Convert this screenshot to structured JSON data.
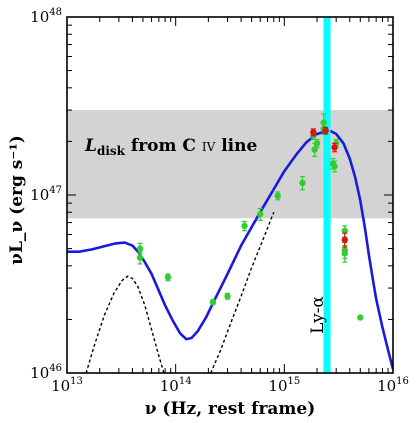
{
  "chart_data": {
    "type": "scatter",
    "xlabel": "ν (Hz, rest frame)",
    "ylabel": "νL_ν (erg s⁻¹)",
    "xscale": "log",
    "yscale": "log",
    "xlim": [
      10000000000000.0,
      1e+16
    ],
    "ylim": [
      1e+46,
      1e+48
    ],
    "grid": false,
    "x_tick_labels": [
      {
        "value": 10000000000000.0,
        "base": "10",
        "exp": "13"
      },
      {
        "value": 100000000000000.0,
        "base": "10",
        "exp": "14"
      },
      {
        "value": 1000000000000000.0,
        "base": "10",
        "exp": "15"
      },
      {
        "value": 1e+16,
        "base": "10",
        "exp": "16"
      }
    ],
    "y_tick_labels": [
      {
        "value": 1e+46,
        "base": "10",
        "exp": "46"
      },
      {
        "value": 1e+47,
        "base": "10",
        "exp": "47"
      },
      {
        "value": 1e+48,
        "base": "10",
        "exp": "48"
      }
    ],
    "shaded_band": {
      "y_from": 7.4e+46,
      "y_to": 3e+47,
      "color": "#d3d3d3"
    },
    "band_label": {
      "main": "L",
      "sub": "disk",
      "text": " from C ",
      "smallcaps": "IV",
      "tail": " line"
    },
    "vertical_line": {
      "x": 2470000000000000.0,
      "label": "Ly-α",
      "color": "#00ffff"
    },
    "series": [
      {
        "role": "model",
        "style": "solid",
        "color": "#1a1add",
        "points": [
          [
            10000000000000.0,
            4.8e+46
          ],
          [
            13000000000000.0,
            4.8e+46
          ],
          [
            17000000000000.0,
            4.95e+46
          ],
          [
            22000000000000.0,
            5.15e+46
          ],
          [
            28000000000000.0,
            5.35e+46
          ],
          [
            34000000000000.0,
            5.4e+46
          ],
          [
            40000000000000.0,
            5.2e+46
          ],
          [
            45000000000000.0,
            4.8e+46
          ],
          [
            52000000000000.0,
            4.2e+46
          ],
          [
            60000000000000.0,
            3.6e+46
          ],
          [
            70000000000000.0,
            2.9e+46
          ],
          [
            80000000000000.0,
            2.4e+46
          ],
          [
            95000000000000.0,
            1.95e+46
          ],
          [
            110000000000000.0,
            1.67e+46
          ],
          [
            125000000000000.0,
            1.55e+46
          ],
          [
            140000000000000.0,
            1.57e+46
          ],
          [
            160000000000000.0,
            1.72e+46
          ],
          [
            190000000000000.0,
            2.05e+46
          ],
          [
            230000000000000.0,
            2.6e+46
          ],
          [
            300000000000000.0,
            3.6e+46
          ],
          [
            400000000000000.0,
            5.2e+46
          ],
          [
            600000000000000.0,
            8e+46
          ],
          [
            800000000000000.0,
            1.08e+47
          ],
          [
            1000000000000000.0,
            1.36e+47
          ],
          [
            1300000000000000.0,
            1.7e+47
          ],
          [
            1600000000000000.0,
            1.98e+47
          ],
          [
            2000000000000000.0,
            2.2e+47
          ],
          [
            2400000000000000.0,
            2.28e+47
          ],
          [
            2700000000000000.0,
            2.28e+47
          ],
          [
            3000000000000000.0,
            2.2e+47
          ],
          [
            3500000000000000.0,
            1.95e+47
          ],
          [
            4000000000000000.0,
            1.6e+47
          ],
          [
            4500000000000000.0,
            1.25e+47
          ],
          [
            5000000000000000.0,
            9.3e+46
          ],
          [
            5500000000000000.0,
            6.6e+46
          ],
          [
            6000000000000000.0,
            4.6e+46
          ],
          [
            6500000000000000.0,
            3.4e+46
          ],
          [
            7000000000000000.0,
            2.6e+46
          ],
          [
            8000000000000000.0,
            1.8e+46
          ],
          [
            9000000000000000.0,
            1.35e+46
          ],
          [
            1e+16,
            1.05e+46
          ]
        ]
      },
      {
        "role": "torus-component",
        "style": "dotted",
        "color": "#000000",
        "points": [
          [
            15000000000000.0,
            1e+46
          ],
          [
            18000000000000.0,
            1.45e+46
          ],
          [
            22000000000000.0,
            2.1e+46
          ],
          [
            27000000000000.0,
            2.8e+46
          ],
          [
            32000000000000.0,
            3.3e+46
          ],
          [
            36000000000000.0,
            3.5e+46
          ],
          [
            40000000000000.0,
            3.4e+46
          ],
          [
            45000000000000.0,
            3.05e+46
          ],
          [
            52000000000000.0,
            2.4e+46
          ],
          [
            60000000000000.0,
            1.75e+46
          ],
          [
            70000000000000.0,
            1.25e+46
          ],
          [
            78000000000000.0,
            1e+46
          ]
        ]
      },
      {
        "role": "disk-component",
        "style": "dotted",
        "color": "#000000",
        "points": [
          [
            210000000000000.0,
            1e+46
          ],
          [
            260000000000000.0,
            1.35e+46
          ],
          [
            320000000000000.0,
            1.9e+46
          ],
          [
            400000000000000.0,
            2.7e+46
          ],
          [
            500000000000000.0,
            3.9e+46
          ],
          [
            650000000000000.0,
            5.8e+46
          ],
          [
            800000000000000.0,
            8e+46
          ]
        ]
      },
      {
        "role": "photometry",
        "marker": "circle",
        "color": "#33cc33",
        "points": [
          {
            "x": 47000000000000.0,
            "y": 4.45e+46,
            "lo": 4.1e+46,
            "hi": 4.8e+46
          },
          {
            "x": 47000000000000.0,
            "y": 5e+46,
            "lo": 4.7e+46,
            "hi": 5.35e+46
          },
          {
            "x": 85000000000000.0,
            "y": 3.45e+46,
            "lo": 3.3e+46,
            "hi": 3.6e+46
          },
          {
            "x": 220000000000000.0,
            "y": 2.5e+46,
            "lo": 2.42e+46,
            "hi": 2.58e+46
          },
          {
            "x": 300000000000000.0,
            "y": 2.7e+46,
            "lo": 2.6e+46,
            "hi": 2.8e+46
          },
          {
            "x": 430000000000000.0,
            "y": 6.7e+46,
            "lo": 6.3e+46,
            "hi": 7.1e+46
          },
          {
            "x": 600000000000000.0,
            "y": 7.8e+46,
            "lo": 7.2e+46,
            "hi": 8.4e+46
          },
          {
            "x": 870000000000000.0,
            "y": 9.9e+46,
            "lo": 9.4e+46,
            "hi": 1.04e+47
          },
          {
            "x": 1470000000000000.0,
            "y": 1.17e+47,
            "lo": 1.07e+47,
            "hi": 1.27e+47
          },
          {
            "x": 1850000000000000.0,
            "y": 2.15e+47,
            "lo": 2.05e+47,
            "hi": 2.25e+47
          },
          {
            "x": 1900000000000000.0,
            "y": 1.8e+47,
            "lo": 1.65e+47,
            "hi": 1.95e+47
          },
          {
            "x": 2000000000000000.0,
            "y": 1.95e+47,
            "lo": 1.85e+47,
            "hi": 2.05e+47
          },
          {
            "x": 2300000000000000.0,
            "y": 2.55e+47,
            "lo": 2.3e+47,
            "hi": 2.85e+47
          },
          {
            "x": 2300000000000000.0,
            "y": 2.35e+47,
            "lo": 2.2e+47,
            "hi": 2.5e+47
          },
          {
            "x": 2800000000000000.0,
            "y": 1.5e+47,
            "lo": 1.4e+47,
            "hi": 1.6e+47
          },
          {
            "x": 2900000000000000.0,
            "y": 1.45e+47,
            "lo": 1.35e+47,
            "hi": 1.55e+47
          },
          {
            "x": 3000000000000000.0,
            "y": 1.95e+47,
            "lo": 1.85e+47,
            "hi": 2.05e+47
          },
          {
            "x": 3600000000000000.0,
            "y": 6.3e+46,
            "lo": 5.8e+46,
            "hi": 6.7e+46
          },
          {
            "x": 3600000000000000.0,
            "y": 4.9e+46,
            "lo": 4.4e+46,
            "hi": 5.4e+46
          },
          {
            "x": 3600000000000000.0,
            "y": 4.7e+46,
            "lo": 4.2e+46,
            "hi": 5.2e+46
          },
          {
            "x": 5000000000000000.0,
            "y": 2.05e+46,
            "lo": null,
            "hi": null
          }
        ]
      },
      {
        "role": "photometry-red",
        "marker": "circle",
        "color": "#dd1111",
        "points": [
          {
            "x": 1850000000000000.0,
            "y": 2.25e+47,
            "lo": 2.15e+47,
            "hi": 2.35e+47
          },
          {
            "x": 2400000000000000.0,
            "y": 2.3e+47,
            "lo": 2.2e+47,
            "hi": 2.4e+47
          },
          {
            "x": 2900000000000000.0,
            "y": 1.85e+47,
            "lo": 1.75e+47,
            "hi": 1.95e+47
          },
          {
            "x": 3600000000000000.0,
            "y": 5.6e+46,
            "lo": 5.1e+46,
            "hi": 6.1e+46
          }
        ]
      }
    ]
  }
}
